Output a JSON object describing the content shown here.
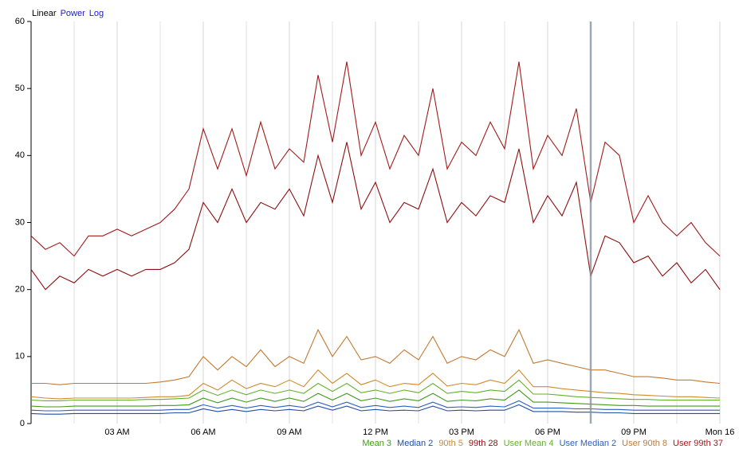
{
  "chart_data": {
    "type": "line",
    "scale_options": [
      "Linear",
      "Power",
      "Log"
    ],
    "scale": "Linear",
    "x": [
      0,
      0.5,
      1,
      1.5,
      2,
      2.5,
      3,
      3.5,
      4,
      4.5,
      5,
      5.5,
      6,
      6.5,
      7,
      7.5,
      8,
      8.5,
      9,
      9.5,
      10,
      10.5,
      11,
      11.5,
      12,
      12.5,
      13,
      13.5,
      14,
      14.5,
      15,
      15.5,
      16,
      16.5,
      17,
      17.5,
      18,
      18.5,
      19,
      19.5,
      20,
      20.5,
      21,
      21.5,
      22,
      22.5,
      23,
      23.5,
      24
    ],
    "xlim": [
      0,
      24
    ],
    "xticks": [
      {
        "value": 3,
        "label": "03 AM"
      },
      {
        "value": 6,
        "label": "06 AM"
      },
      {
        "value": 9,
        "label": "09 AM"
      },
      {
        "value": 12,
        "label": "12 PM"
      },
      {
        "value": 15,
        "label": "03 PM"
      },
      {
        "value": 18,
        "label": "06 PM"
      },
      {
        "value": 21,
        "label": "09 PM"
      },
      {
        "value": 24,
        "label": "Mon 16"
      }
    ],
    "xminor": [
      1.5,
      4.5,
      7.5,
      10.5,
      13.5,
      16.5,
      19.5,
      22.5
    ],
    "marker_x": 19.5,
    "ylim": [
      0,
      60
    ],
    "yticks": [
      0,
      10,
      20,
      30,
      40,
      50,
      60
    ],
    "grid": true,
    "series": [
      {
        "name": "Mean 3",
        "color": "#3f9a1c",
        "values": [
          2.6,
          2.5,
          2.5,
          2.6,
          2.6,
          2.6,
          2.6,
          2.6,
          2.6,
          2.7,
          2.7,
          2.8,
          3.8,
          3.1,
          3.8,
          3.2,
          3.8,
          3.3,
          3.8,
          3.3,
          4.5,
          3.5,
          4.5,
          3.4,
          3.8,
          3.3,
          3.7,
          3.4,
          4.5,
          3.3,
          3.5,
          3.4,
          3.7,
          3.5,
          5,
          3.2,
          3.2,
          3.1,
          3,
          2.9,
          2.8,
          2.7,
          2.7,
          2.6,
          2.6,
          2.6,
          2.6,
          2.6,
          2.6
        ]
      },
      {
        "name": "Median 2",
        "color": "#1f4fa6",
        "values": [
          1.5,
          1.4,
          1.4,
          1.5,
          1.5,
          1.5,
          1.5,
          1.5,
          1.5,
          1.5,
          1.6,
          1.6,
          2.2,
          1.8,
          2.1,
          1.8,
          2.1,
          1.9,
          2.1,
          1.9,
          2.6,
          2,
          2.6,
          1.9,
          2.1,
          1.9,
          2,
          1.9,
          2.6,
          1.9,
          2,
          1.9,
          2,
          2,
          2.8,
          1.8,
          1.8,
          1.8,
          1.7,
          1.7,
          1.6,
          1.6,
          1.5,
          1.5,
          1.5,
          1.5,
          1.5,
          1.5,
          1.5
        ]
      },
      {
        "name": "90th 5",
        "color": "#d08a2a",
        "values": [
          4,
          3.8,
          3.7,
          3.8,
          3.8,
          3.8,
          3.8,
          3.8,
          3.9,
          4,
          4,
          4.2,
          6,
          5,
          6.5,
          5.2,
          6,
          5.5,
          6.5,
          5.5,
          8,
          6,
          7.5,
          5.8,
          6.5,
          5.5,
          6,
          5.8,
          7.5,
          5.6,
          6,
          5.8,
          6.5,
          6,
          8,
          5.5,
          5.5,
          5.2,
          5,
          4.8,
          4.6,
          4.5,
          4.3,
          4.2,
          4.1,
          4,
          4,
          3.9,
          3.8
        ]
      },
      {
        "name": "99th 28",
        "color": "#8e0e0e",
        "values": [
          23,
          20,
          22,
          21,
          23,
          22,
          23,
          22,
          23,
          23,
          24,
          26,
          33,
          30,
          35,
          30,
          33,
          32,
          35,
          31,
          40,
          33,
          42,
          32,
          36,
          30,
          33,
          32,
          38,
          30,
          33,
          31,
          34,
          33,
          41,
          30,
          34,
          31,
          36,
          22,
          28,
          27,
          24,
          25,
          22,
          24,
          21,
          23,
          20
        ]
      },
      {
        "name": "User Mean 4",
        "color": "#62b02a",
        "values": [
          3.5,
          3.4,
          3.4,
          3.5,
          3.5,
          3.5,
          3.5,
          3.5,
          3.6,
          3.6,
          3.7,
          3.8,
          5,
          4.2,
          5,
          4.3,
          5,
          4.5,
          5,
          4.5,
          6,
          4.8,
          6,
          4.6,
          5,
          4.5,
          5,
          4.6,
          6,
          4.5,
          4.8,
          4.6,
          5,
          4.8,
          6.5,
          4.4,
          4.4,
          4.2,
          4,
          3.9,
          3.8,
          3.7,
          3.6,
          3.6,
          3.5,
          3.5,
          3.5,
          3.5,
          3.5
        ]
      },
      {
        "name": "User Median 2",
        "color": "#2a5fc0",
        "values": [
          2,
          1.9,
          1.9,
          2,
          2,
          2,
          2,
          2,
          2,
          2,
          2.1,
          2.1,
          2.8,
          2.3,
          2.7,
          2.3,
          2.7,
          2.4,
          2.7,
          2.4,
          3.2,
          2.5,
          3.2,
          2.4,
          2.7,
          2.4,
          2.6,
          2.4,
          3.2,
          2.4,
          2.5,
          2.4,
          2.6,
          2.5,
          3.4,
          2.3,
          2.3,
          2.3,
          2.2,
          2.2,
          2.1,
          2.1,
          2,
          2,
          2,
          2,
          2,
          2,
          2
        ]
      },
      {
        "name": "User 90th 8",
        "color": "#c27a32",
        "values": [
          6,
          6,
          5.8,
          6,
          6,
          6,
          6,
          6,
          6,
          6.2,
          6.5,
          7,
          10,
          8,
          10,
          8.5,
          11,
          8.5,
          10,
          9,
          14,
          10,
          13,
          9.5,
          10,
          9,
          11,
          9.5,
          13,
          9,
          10,
          9.5,
          11,
          10,
          14,
          9,
          9.5,
          9,
          8.5,
          8,
          8,
          7.5,
          7,
          7,
          6.8,
          6.5,
          6.5,
          6.2,
          6
        ]
      },
      {
        "name": "User 99th 37",
        "color": "#a31a1a",
        "values": [
          28,
          26,
          27,
          25,
          28,
          28,
          29,
          28,
          29,
          30,
          32,
          35,
          44,
          38,
          44,
          37,
          45,
          38,
          41,
          39,
          52,
          42,
          54,
          40,
          45,
          38,
          43,
          40,
          50,
          38,
          42,
          40,
          45,
          41,
          54,
          38,
          43,
          40,
          47,
          33,
          42,
          40,
          30,
          34,
          30,
          28,
          30,
          27,
          25
        ]
      }
    ]
  }
}
